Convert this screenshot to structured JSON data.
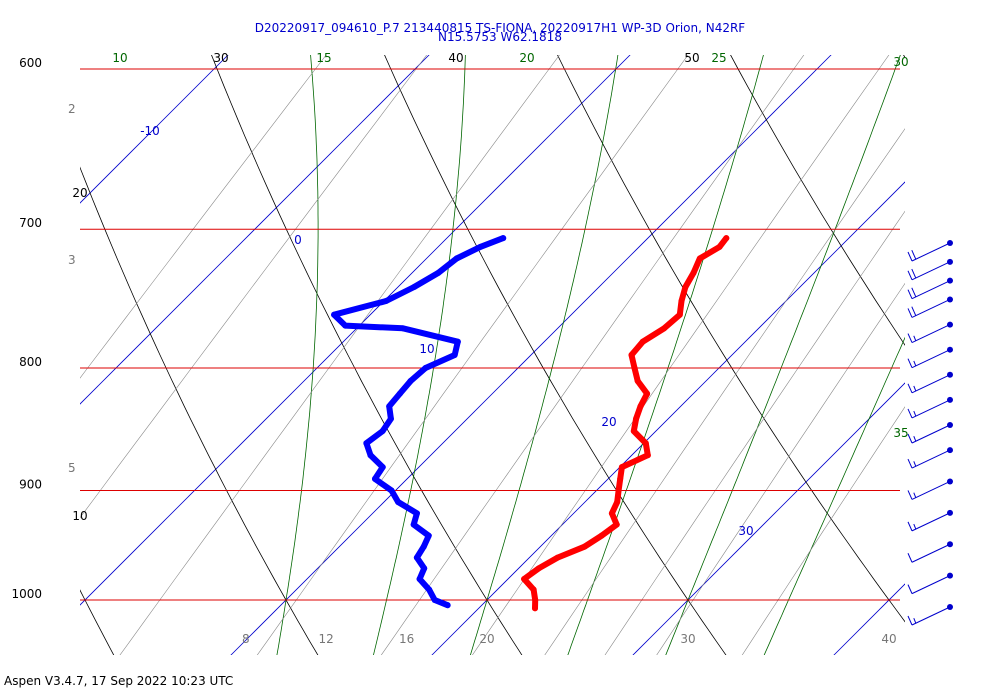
{
  "header": {
    "title_line1": "D20220917_094610_P.7 213440815 TS-FIONA, 20220917H1 WP-3D Orion, N42RF",
    "title_line2": "N15.5753 W62.1818"
  },
  "footer": {
    "text": "Aspen V3.4.7, 17 Sep 2022  10:23 UTC"
  },
  "chart_data": {
    "type": "skew-t",
    "pressure_levels": [
      600,
      700,
      800,
      900,
      1000
    ],
    "pressure_label_color": "#dd0000",
    "temperature_ticks": [
      8,
      12,
      16,
      20,
      30,
      40
    ],
    "dry_adiabat_labels": [
      10,
      20,
      30,
      40,
      50
    ],
    "moist_adiabat_labels": [
      10,
      15,
      20,
      25,
      30,
      35
    ],
    "isotherm_labels": [
      -10,
      0,
      10,
      20,
      30
    ],
    "mixing_ratio_labels": [
      2,
      3,
      5
    ],
    "colors": {
      "isobar": "#dd0000",
      "isotherm": "#0000cc",
      "dry_adiabat": "#000000",
      "moist_adiabat": "#006600",
      "mixing_ratio": "#888888",
      "temperature": "#ff0000",
      "dewpoint": "#0000ff",
      "wind_barb": "#0000cc"
    },
    "temperature_profile": [
      {
        "p": 706,
        "t": 13.9
      },
      {
        "p": 712,
        "t": 14.0
      },
      {
        "p": 720,
        "t": 13.6
      },
      {
        "p": 730,
        "t": 14.0
      },
      {
        "p": 740,
        "t": 14.3
      },
      {
        "p": 750,
        "t": 14.8
      },
      {
        "p": 760,
        "t": 15.4
      },
      {
        "p": 770,
        "t": 15.3
      },
      {
        "p": 780,
        "t": 14.9
      },
      {
        "p": 790,
        "t": 15.0
      },
      {
        "p": 800,
        "t": 15.8
      },
      {
        "p": 810,
        "t": 16.6
      },
      {
        "p": 820,
        "t": 17.7
      },
      {
        "p": 830,
        "t": 18.0
      },
      {
        "p": 840,
        "t": 18.4
      },
      {
        "p": 850,
        "t": 18.9
      },
      {
        "p": 860,
        "t": 20.1
      },
      {
        "p": 870,
        "t": 20.8
      },
      {
        "p": 880,
        "t": 20.1
      },
      {
        "p": 890,
        "t": 20.6
      },
      {
        "p": 900,
        "t": 21.1
      },
      {
        "p": 910,
        "t": 21.6
      },
      {
        "p": 920,
        "t": 21.9
      },
      {
        "p": 930,
        "t": 22.7
      },
      {
        "p": 940,
        "t": 22.5
      },
      {
        "p": 950,
        "t": 22.2
      },
      {
        "p": 960,
        "t": 21.4
      },
      {
        "p": 970,
        "t": 21.0
      },
      {
        "p": 980,
        "t": 20.8
      },
      {
        "p": 990,
        "t": 21.8
      },
      {
        "p": 1000,
        "t": 22.4
      },
      {
        "p": 1008,
        "t": 22.8
      }
    ],
    "dewpoint_profile": [
      {
        "p": 706,
        "td": 2.8
      },
      {
        "p": 712,
        "td": 2.1
      },
      {
        "p": 720,
        "td": 1.5
      },
      {
        "p": 730,
        "td": 1.3
      },
      {
        "p": 740,
        "td": 0.8
      },
      {
        "p": 750,
        "td": 0.1
      },
      {
        "p": 760,
        "td": -1.8
      },
      {
        "p": 768,
        "td": -0.7
      },
      {
        "p": 770,
        "td": 2.3
      },
      {
        "p": 780,
        "td": 5.7
      },
      {
        "p": 790,
        "td": 6.2
      },
      {
        "p": 800,
        "td": 5.4
      },
      {
        "p": 810,
        "td": 5.3
      },
      {
        "p": 820,
        "td": 5.4
      },
      {
        "p": 830,
        "td": 5.5
      },
      {
        "p": 840,
        "td": 6.2
      },
      {
        "p": 850,
        "td": 6.4
      },
      {
        "p": 860,
        "td": 6.2
      },
      {
        "p": 870,
        "td": 7.0
      },
      {
        "p": 880,
        "td": 8.2
      },
      {
        "p": 890,
        "td": 8.4
      },
      {
        "p": 900,
        "td": 9.8
      },
      {
        "p": 910,
        "td": 10.7
      },
      {
        "p": 920,
        "td": 12.2
      },
      {
        "p": 930,
        "td": 12.6
      },
      {
        "p": 940,
        "td": 13.9
      },
      {
        "p": 950,
        "td": 14.2
      },
      {
        "p": 960,
        "td": 14.4
      },
      {
        "p": 970,
        "td": 15.3
      },
      {
        "p": 980,
        "td": 15.6
      },
      {
        "p": 990,
        "td": 16.6
      },
      {
        "p": 1000,
        "td": 17.4
      },
      {
        "p": 1005,
        "td": 18.3
      }
    ],
    "wind_barbs": [
      {
        "p": 710,
        "speed": 20
      },
      {
        "p": 725,
        "speed": 20
      },
      {
        "p": 740,
        "speed": 20
      },
      {
        "p": 755,
        "speed": 20
      },
      {
        "p": 775,
        "speed": 15
      },
      {
        "p": 795,
        "speed": 15
      },
      {
        "p": 815,
        "speed": 15
      },
      {
        "p": 835,
        "speed": 15
      },
      {
        "p": 855,
        "speed": 15
      },
      {
        "p": 875,
        "speed": 15
      },
      {
        "p": 900,
        "speed": 15
      },
      {
        "p": 925,
        "speed": 15
      },
      {
        "p": 950,
        "speed": 10
      },
      {
        "p": 975,
        "speed": 10
      },
      {
        "p": 1000,
        "speed": 15
      }
    ]
  }
}
